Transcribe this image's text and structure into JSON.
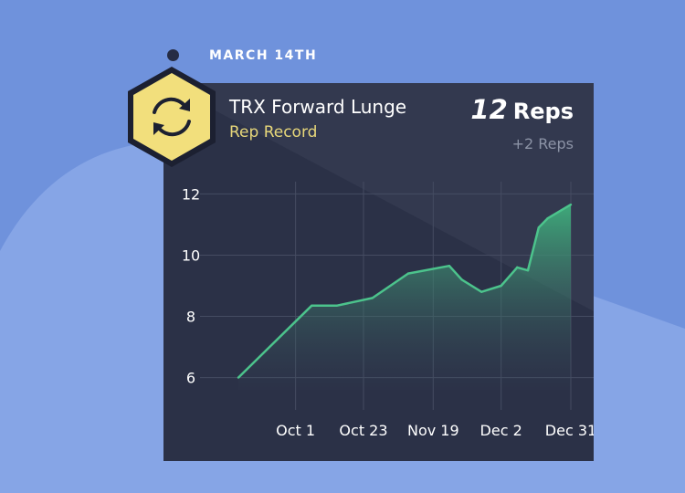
{
  "header": {
    "date": "MARCH 14TH"
  },
  "card": {
    "title": "TRX Forward Lunge",
    "subtitle": "Rep Record",
    "reps_number": "12",
    "reps_unit": "Reps",
    "reps_delta": "+2 Reps",
    "badge_icon": "refresh-icon",
    "colors": {
      "background": "#6f92dc",
      "card": "#2b3147",
      "badge": "#f2df7c",
      "line": "#4cc38c",
      "subtitle": "#e7d77a"
    }
  },
  "chart_data": {
    "type": "area",
    "title": "",
    "xlabel": "",
    "ylabel": "",
    "ylim": [
      5.6,
      12.4
    ],
    "yticks": [
      6,
      8,
      10,
      12
    ],
    "x_tick_labels": [
      "Oct 1",
      "Oct 23",
      "Nov 19",
      "Dec 2",
      "Dec 31"
    ],
    "x_tick_positions": [
      0.32,
      0.7,
      1.09,
      1.47,
      1.86
    ],
    "grid": true,
    "series": [
      {
        "x": [
          0,
          0.41,
          0.55,
          0.75,
          0.95,
          1.18,
          1.25,
          1.36,
          1.47,
          1.56,
          1.62,
          1.68,
          1.73,
          1.86
        ],
        "y": [
          6.0,
          8.35,
          8.35,
          8.6,
          9.4,
          9.65,
          9.2,
          8.8,
          9.0,
          9.6,
          9.5,
          10.9,
          11.2,
          11.65
        ]
      }
    ]
  }
}
